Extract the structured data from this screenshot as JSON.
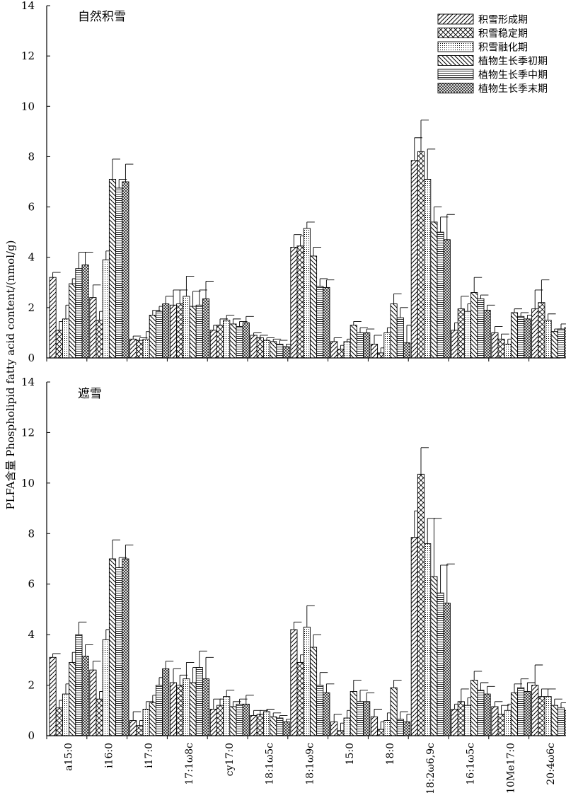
{
  "ylabel": "PLFA含量 Phospholipid fatty acid content/(nmol/g)",
  "legend_position": "top-right",
  "patterns": [
    "diag-fwd",
    "cross",
    "dots",
    "diag-back",
    "horizontal",
    "crosshatch-dense"
  ],
  "chart_data": [
    {
      "type": "bar",
      "title": "自然积雪",
      "ylim": [
        0,
        14
      ],
      "yticks": [
        0,
        2,
        4,
        6,
        8,
        10,
        12,
        14
      ],
      "categories": [
        "a15:0",
        "i16:0",
        "i17:0",
        "17:1ω8c",
        "cy17:0",
        "18:1ω5c",
        "18:1ω9c",
        "15:0",
        "18:0",
        "18:2ω6,9c",
        "16:1ω5c",
        "10Me17:0",
        "20:4ω6c"
      ],
      "series": [
        {
          "name": "积雪形成期",
          "values": [
            3.2,
            2.4,
            0.75,
            2.1,
            1.1,
            0.9,
            4.4,
            0.65,
            0.55,
            7.85,
            1.1,
            1.0,
            1.95
          ],
          "errors": [
            0.2,
            0.5,
            0.12,
            0.6,
            0.2,
            0.1,
            0.5,
            0.15,
            0.35,
            0.9,
            0.3,
            0.25,
            0.75
          ]
        },
        {
          "name": "积雪稳定期",
          "values": [
            1.1,
            1.5,
            0.7,
            2.15,
            1.3,
            0.8,
            4.45,
            0.35,
            0.2,
            8.2,
            1.95,
            0.75,
            2.2
          ],
          "errors": [
            0.35,
            0.35,
            0.1,
            0.55,
            0.25,
            0.1,
            0.4,
            0.15,
            0.2,
            1.25,
            0.5,
            0.2,
            0.9
          ]
        },
        {
          "name": "积雪融化期",
          "values": [
            1.55,
            3.9,
            0.75,
            2.45,
            1.5,
            0.7,
            5.15,
            0.65,
            1.0,
            7.1,
            1.85,
            0.55,
            1.5
          ],
          "errors": [
            0.55,
            0.35,
            0.3,
            0.8,
            0.2,
            0.1,
            0.25,
            0.1,
            0.2,
            1.2,
            0.3,
            0.2,
            0.25
          ]
        },
        {
          "name": "植物生长季初期",
          "values": [
            2.95,
            7.1,
            1.7,
            2.05,
            1.35,
            0.65,
            4.05,
            1.3,
            2.15,
            5.4,
            2.6,
            1.8,
            1.05
          ],
          "errors": [
            0.2,
            0.8,
            0.2,
            0.6,
            0.2,
            0.1,
            0.35,
            0.15,
            0.4,
            0.6,
            0.6,
            0.15,
            0.1
          ]
        },
        {
          "name": "植物生长季中期",
          "values": [
            3.55,
            6.75,
            1.85,
            2.1,
            1.25,
            0.55,
            2.85,
            1.0,
            1.6,
            5.0,
            2.35,
            1.65,
            1.15
          ],
          "errors": [
            0.65,
            0.35,
            0.2,
            0.6,
            0.2,
            0.15,
            0.3,
            0.2,
            0.4,
            0.6,
            0.15,
            0.15,
            0.2
          ]
        },
        {
          "name": "植物生长季末期",
          "values": [
            3.7,
            7.0,
            2.15,
            2.35,
            1.4,
            0.45,
            2.8,
            1.0,
            0.6,
            4.7,
            1.9,
            1.55,
            1.2
          ],
          "errors": [
            0.5,
            0.7,
            0.3,
            0.7,
            0.25,
            0.1,
            0.3,
            0.15,
            0.7,
            1.0,
            0.2,
            0.15,
            0.4
          ]
        }
      ]
    },
    {
      "type": "bar",
      "title": "遮雪",
      "ylim": [
        0,
        14
      ],
      "yticks": [
        0,
        2,
        4,
        6,
        8,
        10,
        12,
        14
      ],
      "categories": [
        "a15:0",
        "i16:0",
        "i17:0",
        "17:1ω8c",
        "cy17:0",
        "18:1ω5c",
        "18:1ω9c",
        "15:0",
        "18:0",
        "18:2ω6,9c",
        "16:1ω5c",
        "10Me17:0",
        "20:4ω6c"
      ],
      "series": [
        {
          "name": "积雪形成期",
          "values": [
            3.1,
            2.6,
            0.6,
            2.1,
            1.05,
            0.8,
            4.2,
            0.55,
            0.75,
            7.85,
            1.05,
            1.15,
            2.0
          ],
          "errors": [
            0.15,
            0.35,
            0.35,
            0.55,
            0.4,
            0.2,
            0.3,
            0.3,
            0.3,
            1.05,
            0.2,
            0.2,
            0.8
          ]
        },
        {
          "name": "积雪稳定期",
          "values": [
            1.1,
            1.45,
            0.4,
            2.0,
            1.2,
            0.85,
            2.9,
            0.2,
            0.25,
            10.35,
            1.35,
            0.85,
            1.55
          ],
          "errors": [
            0.3,
            0.3,
            0.2,
            0.4,
            0.25,
            0.15,
            0.3,
            0.3,
            0.3,
            1.05,
            0.5,
            0.35,
            0.3
          ]
        },
        {
          "name": "积雪融化期",
          "values": [
            1.65,
            3.8,
            1.05,
            2.25,
            1.55,
            0.95,
            4.3,
            0.7,
            0.6,
            7.6,
            1.2,
            1.0,
            1.55
          ],
          "errors": [
            0.4,
            0.4,
            0.3,
            0.65,
            0.25,
            0.1,
            0.85,
            0.3,
            0.3,
            1.0,
            0.3,
            0.25,
            0.3
          ]
        },
        {
          "name": "植物生长季初期",
          "values": [
            2.9,
            7.0,
            1.3,
            2.1,
            1.15,
            0.75,
            3.5,
            1.75,
            1.9,
            6.3,
            2.2,
            1.7,
            1.2
          ],
          "errors": [
            0.4,
            0.75,
            0.3,
            0.6,
            0.2,
            0.15,
            0.5,
            0.45,
            0.3,
            2.3,
            0.35,
            0.35,
            0.25
          ]
        },
        {
          "name": "植物生长季中期",
          "values": [
            4.0,
            6.65,
            2.0,
            2.7,
            1.25,
            0.7,
            2.0,
            1.35,
            0.65,
            5.65,
            1.8,
            1.9,
            1.1
          ],
          "errors": [
            0.5,
            0.4,
            0.3,
            0.65,
            0.2,
            0.1,
            0.5,
            0.45,
            0.3,
            1.1,
            0.3,
            0.35,
            0.2
          ]
        },
        {
          "name": "植物生长季末期",
          "values": [
            3.15,
            7.0,
            2.65,
            2.25,
            1.25,
            0.55,
            1.7,
            1.35,
            0.55,
            5.25,
            1.65,
            1.75,
            1.0
          ],
          "errors": [
            0.45,
            0.55,
            0.3,
            0.85,
            0.35,
            0.1,
            0.35,
            0.35,
            0.3,
            1.55,
            0.3,
            0.35,
            0.3
          ]
        }
      ]
    }
  ]
}
